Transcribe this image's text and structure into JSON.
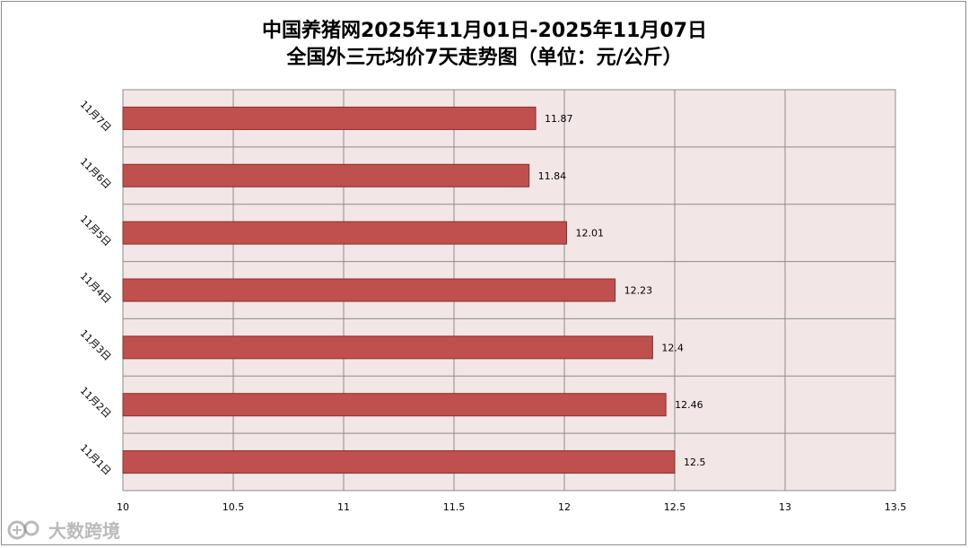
{
  "title": {
    "line1": "中国养猪网2025年11月01日-2025年11月07日",
    "line2": "全国外三元均价7天走势图（单位：元/公斤）"
  },
  "watermark": {
    "text": "大数跨境",
    "icon": "logo-icon"
  },
  "colors": {
    "bar_fill": "#c0504d",
    "bar_stroke": "#8b2d2a",
    "plot_bg": "#f2e6e6",
    "grid": "#8c8c8c"
  },
  "chart_data": {
    "type": "bar",
    "orientation": "horizontal",
    "categories": [
      "11月1日",
      "11月2日",
      "11月3日",
      "11月4日",
      "11月5日",
      "11月6日",
      "11月7日"
    ],
    "values": [
      12.5,
      12.46,
      12.4,
      12.23,
      12.01,
      11.84,
      11.87
    ],
    "data_labels": [
      "12.5",
      "12.46",
      "12.4",
      "12.23",
      "12.01",
      "11.84",
      "11.87"
    ],
    "xlim": [
      10,
      13.5
    ],
    "xticks": [
      "10",
      "10.5",
      "11",
      "11.5",
      "12",
      "12.5",
      "13",
      "13.5"
    ],
    "grid": true,
    "legend": "none"
  }
}
